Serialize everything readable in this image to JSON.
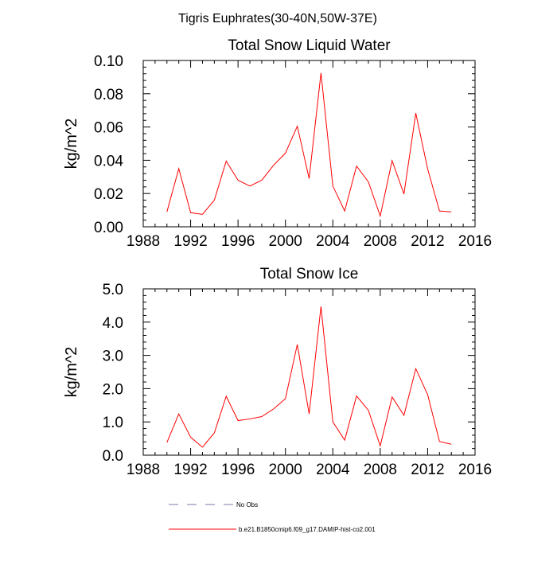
{
  "figure": {
    "main_title": "Tigris Euphrates(30-40N,50W-37E)"
  },
  "chart_data": [
    {
      "type": "line",
      "title": "Total Snow Liquid Water",
      "xlabel": "",
      "ylabel": "kg/m^2",
      "xlim": [
        1988,
        2016
      ],
      "ylim": [
        0.0,
        0.1
      ],
      "x_ticks": [
        1988,
        1992,
        1996,
        2000,
        2004,
        2008,
        2012,
        2016
      ],
      "x_tick_labels": [
        "1988",
        "1992",
        "1996",
        "2000",
        "2004",
        "2008",
        "2012",
        "2016"
      ],
      "y_ticks": [
        0.0,
        0.02,
        0.04,
        0.06,
        0.08,
        0.1
      ],
      "y_tick_labels": [
        "0.00",
        "0.02",
        "0.04",
        "0.06",
        "0.08",
        "0.10"
      ],
      "grid": false,
      "series": [
        {
          "name": "b.e21.B1850cmip6.f09_g17.DAMIP-hist-co2.001",
          "color": "#ff0000",
          "x": [
            1990,
            1991,
            1992,
            1993,
            1994,
            1995,
            1996,
            1997,
            1998,
            1999,
            2000,
            2001,
            2002,
            2003,
            2004,
            2005,
            2006,
            2007,
            2008,
            2009,
            2010,
            2011,
            2012,
            2013,
            2014
          ],
          "y": [
            0.009,
            0.035,
            0.0085,
            0.0075,
            0.016,
            0.0395,
            0.028,
            0.0245,
            0.028,
            0.037,
            0.0443,
            0.0605,
            0.029,
            0.0925,
            0.0245,
            0.0095,
            0.0365,
            0.027,
            0.0065,
            0.0398,
            0.0197,
            0.0683,
            0.0348,
            0.0095,
            0.009
          ]
        }
      ]
    },
    {
      "type": "line",
      "title": "Total Snow Ice",
      "xlabel": "",
      "ylabel": "kg/m^2",
      "xlim": [
        1988,
        2016
      ],
      "ylim": [
        0.0,
        5.0
      ],
      "x_ticks": [
        1988,
        1992,
        1996,
        2000,
        2004,
        2008,
        2012,
        2016
      ],
      "x_tick_labels": [
        "1988",
        "1992",
        "1996",
        "2000",
        "2004",
        "2008",
        "2012",
        "2016"
      ],
      "y_ticks": [
        0.0,
        1.0,
        2.0,
        3.0,
        4.0,
        5.0
      ],
      "y_tick_labels": [
        "0.0",
        "1.0",
        "2.0",
        "3.0",
        "4.0",
        "5.0"
      ],
      "grid": false,
      "series": [
        {
          "name": "b.e21.B1850cmip6.f09_g17.DAMIP-hist-co2.001",
          "color": "#ff0000",
          "x": [
            1990,
            1991,
            1992,
            1993,
            1994,
            1995,
            1996,
            1997,
            1998,
            1999,
            2000,
            2001,
            2002,
            2003,
            2004,
            2005,
            2006,
            2007,
            2008,
            2009,
            2010,
            2011,
            2012,
            2013,
            2014
          ],
          "y": [
            0.38,
            1.24,
            0.54,
            0.24,
            0.67,
            1.77,
            1.04,
            1.09,
            1.16,
            1.39,
            1.7,
            3.33,
            1.24,
            4.47,
            1.0,
            0.45,
            1.78,
            1.35,
            0.28,
            1.75,
            1.2,
            2.6,
            1.82,
            0.41,
            0.33
          ]
        }
      ]
    }
  ],
  "legend": {
    "placement": "bottom",
    "entries": [
      {
        "label": "No Obs",
        "style": "dashed",
        "color": "#7777aa"
      },
      {
        "label": "b.e21.B1850cmip6.f09_g17.DAMIP-hist-co2.001",
        "style": "solid",
        "color": "#ff0000"
      }
    ]
  }
}
